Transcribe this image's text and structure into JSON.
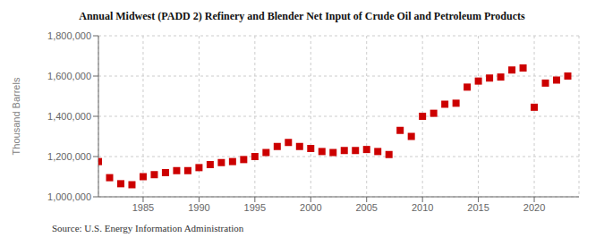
{
  "chart_data": {
    "type": "scatter",
    "title": "Annual Midwest (PADD 2) Refinery and Blender Net Input of Crude Oil and Petroleum Products",
    "ylabel": "Thousand Barrels",
    "annotation": "Source: U.S. Energy Information Administration",
    "color": "#cc0000",
    "marker": "square",
    "grid": true,
    "xlim": [
      1981,
      2024
    ],
    "xticks": [
      1985,
      1990,
      1995,
      2000,
      2005,
      2010,
      2015,
      2020
    ],
    "ylim": [
      1000000,
      1800000
    ],
    "yticks": [
      {
        "value": 1000000,
        "label": "1,000,000"
      },
      {
        "value": 1200000,
        "label": "1,200,000"
      },
      {
        "value": 1400000,
        "label": "1,400,000"
      },
      {
        "value": 1600000,
        "label": "1,600,000"
      },
      {
        "value": 1800000,
        "label": "1,800,000"
      }
    ],
    "x": [
      1981,
      1982,
      1983,
      1984,
      1985,
      1986,
      1987,
      1988,
      1989,
      1990,
      1991,
      1992,
      1993,
      1994,
      1995,
      1996,
      1997,
      1998,
      1999,
      2000,
      2001,
      2002,
      2003,
      2004,
      2005,
      2006,
      2007,
      2008,
      2009,
      2010,
      2011,
      2012,
      2013,
      2014,
      2015,
      2016,
      2017,
      2018,
      2019,
      2020,
      2021,
      2022,
      2023
    ],
    "values": [
      1175000,
      1095000,
      1065000,
      1060000,
      1100000,
      1110000,
      1120000,
      1130000,
      1130000,
      1145000,
      1160000,
      1170000,
      1175000,
      1185000,
      1200000,
      1220000,
      1250000,
      1270000,
      1250000,
      1240000,
      1225000,
      1220000,
      1230000,
      1230000,
      1235000,
      1225000,
      1210000,
      1330000,
      1300000,
      1400000,
      1415000,
      1460000,
      1465000,
      1545000,
      1575000,
      1590000,
      1595000,
      1630000,
      1640000,
      1445000,
      1565000,
      1580000,
      1600000
    ]
  }
}
